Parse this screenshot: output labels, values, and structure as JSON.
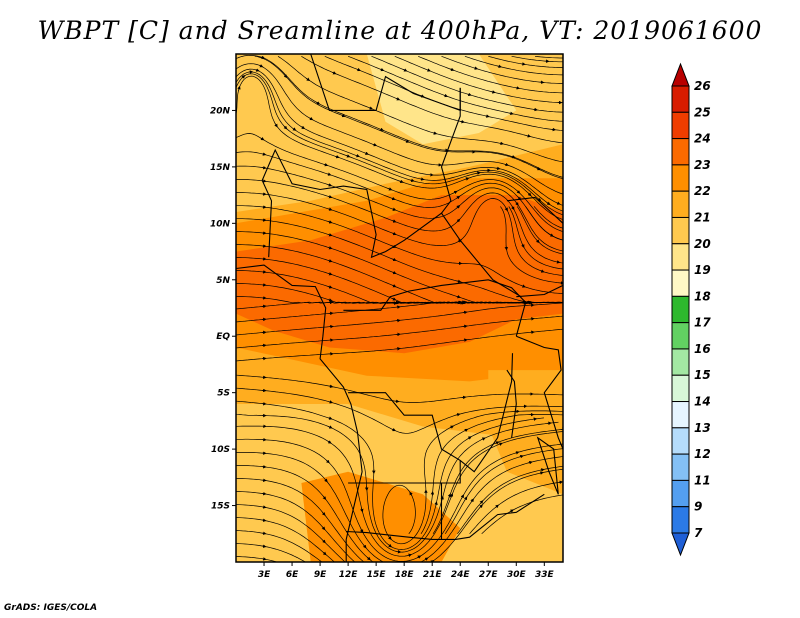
{
  "title": "WBPT [C] and Sreamline at 400hPa, VT: 2019061600",
  "credit": "GrADS: IGES/COLA",
  "map": {
    "lon_range": [
      0,
      35
    ],
    "lat_range": [
      -20,
      25
    ],
    "x_ticks": [
      "3E",
      "6E",
      "9E",
      "12E",
      "15E",
      "18E",
      "21E",
      "24E",
      "27E",
      "30E",
      "33E"
    ],
    "y_ticks": [
      "20N",
      "15N",
      "10N",
      "5N",
      "EQ",
      "5S",
      "10S",
      "15S"
    ]
  },
  "colorbar": {
    "levels": [
      "26",
      "25",
      "24",
      "23",
      "22",
      "21",
      "20",
      "19",
      "18",
      "17",
      "16",
      "15",
      "14",
      "13",
      "12",
      "11",
      "9",
      "7"
    ],
    "colors": [
      "#b80000",
      "#d81c00",
      "#ef3d00",
      "#fb6a00",
      "#ff8f00",
      "#ffad1f",
      "#ffc94f",
      "#ffe58a",
      "#fff8c6",
      "#2eb82e",
      "#62d162",
      "#a3e8a3",
      "#d8f7d8",
      "#e6f5ff",
      "#b5dcfb",
      "#84c0f5",
      "#549ff0",
      "#2b7ae6",
      "#1f5fd6"
    ]
  },
  "field_colors": {
    "warm": "#fb6a00",
    "mid": "#ff8f00",
    "base": "#ffad1f",
    "light": "#ffc94f",
    "pale": "#ffe58a"
  }
}
